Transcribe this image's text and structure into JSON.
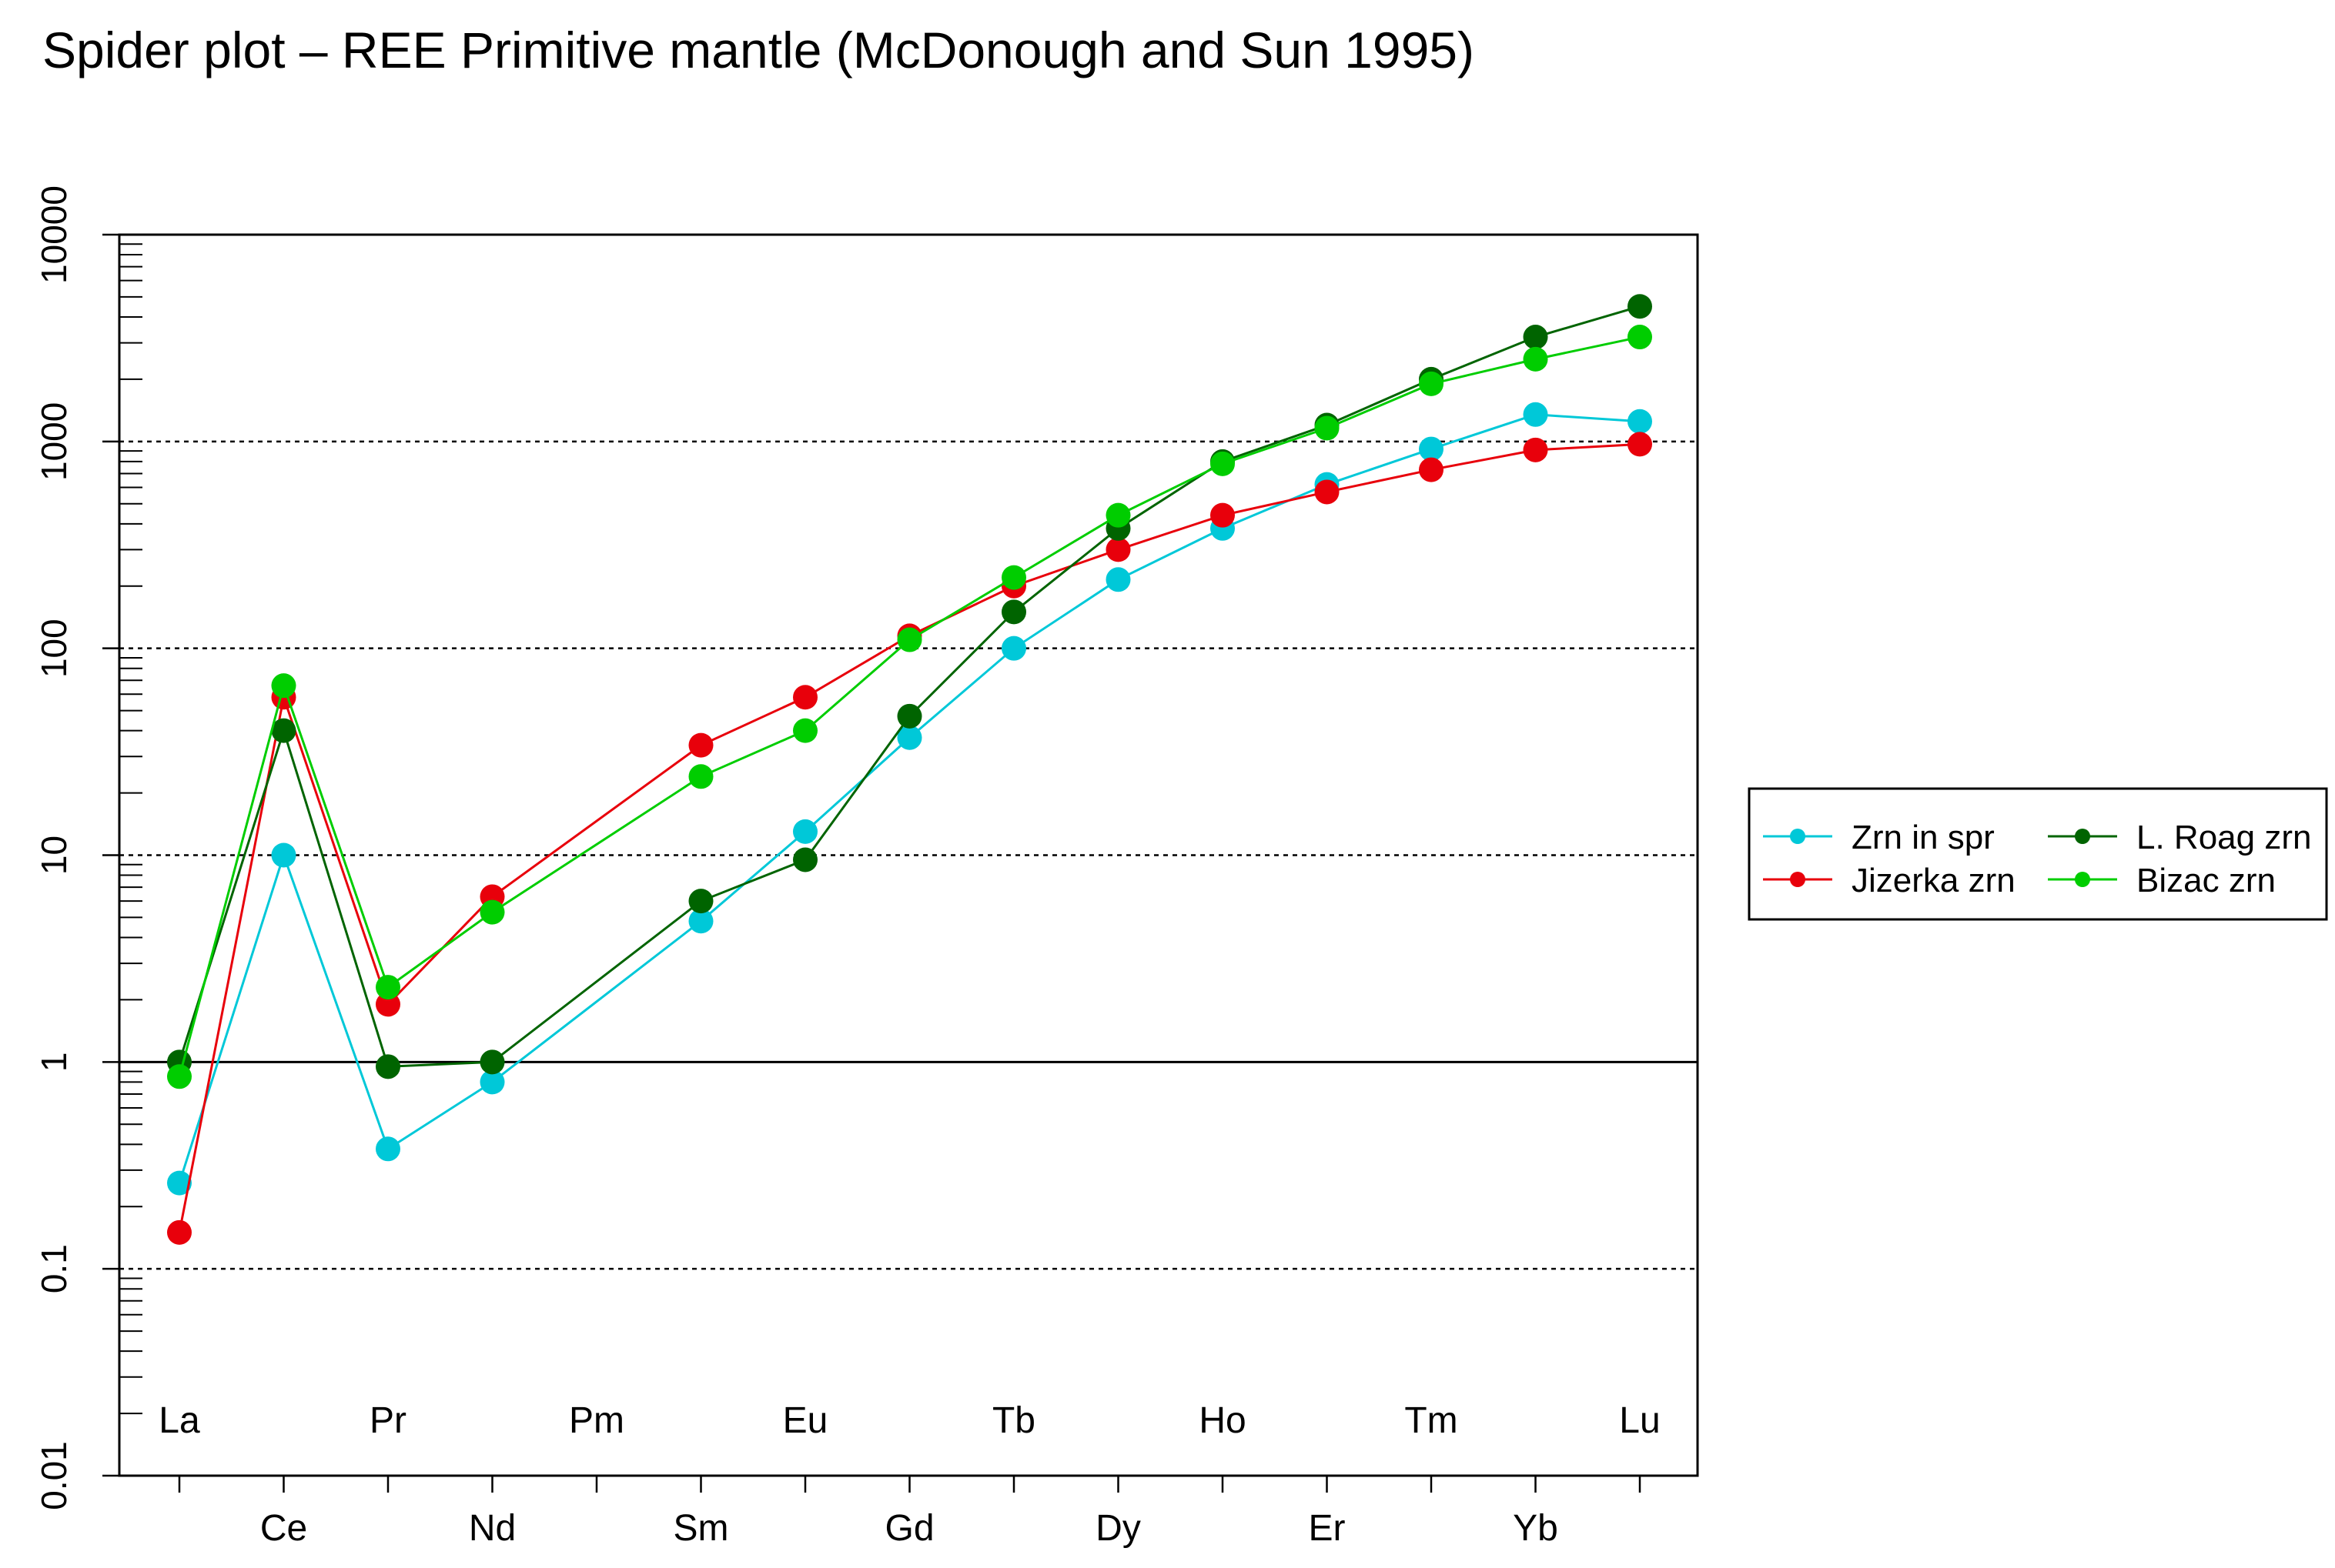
{
  "chart_data": {
    "type": "line",
    "title": "Spider plot –  REE Primitive mantle (McDonough  and  Sun 1995)",
    "xlabel": "",
    "ylabel": "",
    "y_scale": "log",
    "ylim": [
      0.01,
      10000
    ],
    "y_ticks": [
      "0.01",
      "0.1",
      "1",
      "10",
      "100",
      "1000",
      "10000"
    ],
    "y_tick_values": [
      0.01,
      0.1,
      1,
      10,
      100,
      1000,
      10000
    ],
    "grid": "dotted horizontal lines at 0.1, 10, 100, 1000; solid line at 1",
    "reference_dotted": [
      0.1,
      10,
      100,
      1000
    ],
    "reference_solid": [
      1
    ],
    "categories": [
      "La",
      "Ce",
      "Pr",
      "Nd",
      "Pm",
      "Sm",
      "Eu",
      "Gd",
      "Tb",
      "Dy",
      "Ho",
      "Er",
      "Tm",
      "Yb",
      "Lu"
    ],
    "upper_labels": [
      "La",
      "Pr",
      "Pm",
      "Eu",
      "Tb",
      "Ho",
      "Tm",
      "Lu"
    ],
    "lower_labels": [
      "Ce",
      "Nd",
      "Sm",
      "Gd",
      "Dy",
      "Er",
      "Yb"
    ],
    "legend_position": "right",
    "series": [
      {
        "name": "Zrn in spr",
        "color": "#00c8d8",
        "values": [
          0.26,
          10,
          0.38,
          0.8,
          null,
          4.8,
          13,
          37,
          100,
          215,
          380,
          620,
          920,
          1350,
          1250
        ]
      },
      {
        "name": "Jizerka zrn",
        "color": "#e8000b",
        "values": [
          0.15,
          58,
          1.9,
          6.3,
          null,
          34,
          58,
          115,
          200,
          300,
          440,
          570,
          730,
          910,
          970
        ]
      },
      {
        "name": "L. Roag zrn",
        "color": "#006400",
        "values": [
          1.0,
          40,
          0.95,
          1.0,
          null,
          6.0,
          9.5,
          47,
          150,
          380,
          800,
          1200,
          2000,
          3200,
          4500
        ]
      },
      {
        "name": "Bizac zrn",
        "color": "#00cd00",
        "values": [
          0.85,
          66,
          2.3,
          5.3,
          null,
          24,
          40,
          110,
          220,
          440,
          780,
          1160,
          1900,
          2500,
          3200
        ]
      }
    ]
  }
}
